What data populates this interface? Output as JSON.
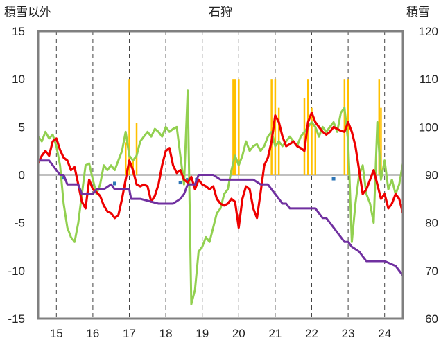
{
  "chart_data": {
    "type": "line",
    "title": "石狩",
    "ylabel_left": "積雪以外",
    "ylabel_right": "積雪",
    "x_range": [
      14.5,
      24.5
    ],
    "x_ticks": [
      "15",
      "16",
      "17",
      "18",
      "19",
      "20",
      "21",
      "22",
      "23",
      "24"
    ],
    "y_left_range": [
      -15,
      15
    ],
    "y_left_ticks": [
      "15",
      "10",
      "5",
      "0",
      "-5",
      "-10",
      "-15"
    ],
    "y_right_range": [
      60,
      120
    ],
    "y_right_ticks": [
      "120",
      "110",
      "100",
      "90",
      "80",
      "70",
      "60"
    ],
    "grid": "dashed vertical at each x tick",
    "colors": {
      "red": "#ee0000",
      "green": "#92d050",
      "purple": "#7030a0",
      "orange": "#ffc000",
      "blue": "#2e75b6"
    },
    "series": [
      {
        "color": "red",
        "axis": "left",
        "x": [
          14.5,
          14.6,
          14.7,
          14.8,
          14.9,
          15.0,
          15.1,
          15.2,
          15.3,
          15.4,
          15.5,
          15.6,
          15.7,
          15.8,
          15.9,
          16.0,
          16.1,
          16.2,
          16.3,
          16.4,
          16.5,
          16.6,
          16.7,
          16.8,
          16.9,
          17.0,
          17.1,
          17.2,
          17.3,
          17.4,
          17.5,
          17.6,
          17.7,
          17.8,
          17.9,
          18.0,
          18.1,
          18.2,
          18.3,
          18.4,
          18.5,
          18.6,
          18.7,
          18.8,
          18.9,
          19.0,
          19.1,
          19.2,
          19.3,
          19.4,
          19.5,
          19.6,
          19.7,
          19.8,
          19.9,
          20.0,
          20.1,
          20.2,
          20.3,
          20.4,
          20.5,
          20.6,
          20.7,
          20.8,
          20.9,
          21.0,
          21.1,
          21.2,
          21.3,
          21.4,
          21.5,
          21.6,
          21.7,
          21.8,
          21.9,
          22.0,
          22.1,
          22.2,
          22.3,
          22.4,
          22.5,
          22.6,
          22.7,
          22.8,
          22.9,
          23.0,
          23.1,
          23.2,
          23.3,
          23.4,
          23.5,
          23.6,
          23.7,
          23.8,
          23.9,
          24.0,
          24.1,
          24.2,
          24.3,
          24.4,
          24.5
        ],
        "y": [
          1.2,
          2.0,
          2.5,
          2.0,
          3.5,
          3.8,
          2.6,
          1.8,
          1.5,
          0.5,
          0.8,
          -1.0,
          -2.8,
          -3.5,
          -0.5,
          -1.5,
          -1.8,
          -2.2,
          -3.2,
          -3.8,
          -4.0,
          -4.5,
          -4.2,
          -2.5,
          -0.5,
          1.5,
          0.5,
          -1.0,
          -1.2,
          -1.0,
          -1.2,
          -2.8,
          -2.2,
          -1.0,
          1.0,
          2.5,
          2.8,
          1.0,
          0.2,
          0.5,
          -0.5,
          -0.8,
          -0.2,
          -1.5,
          -0.5,
          -1.0,
          -1.2,
          -1.5,
          -1.2,
          -2.5,
          -3.0,
          -3.2,
          -3.0,
          -2.5,
          -2.8,
          -5.5,
          -2.5,
          -1.2,
          -1.5,
          -3.5,
          -4.5,
          -1.8,
          1.0,
          1.8,
          3.5,
          6.2,
          5.5,
          4.0,
          3.0,
          3.2,
          3.5,
          3.0,
          2.8,
          2.5,
          5.5,
          6.5,
          5.5,
          5.0,
          4.5,
          4.2,
          4.5,
          5.0,
          4.8,
          4.6,
          4.5,
          5.5,
          4.5,
          3.0,
          0.5,
          -2.0,
          -1.5,
          -0.5,
          0.5,
          -1.0,
          -2.5,
          -2.0,
          -3.5,
          -3.0,
          -2.0,
          -2.5,
          -4.0
        ]
      },
      {
        "color": "green",
        "axis": "left",
        "x": [
          14.5,
          14.6,
          14.7,
          14.8,
          14.9,
          15.0,
          15.1,
          15.2,
          15.3,
          15.4,
          15.5,
          15.6,
          15.7,
          15.8,
          15.9,
          16.0,
          16.1,
          16.2,
          16.3,
          16.4,
          16.5,
          16.6,
          16.7,
          16.8,
          16.9,
          17.0,
          17.1,
          17.2,
          17.3,
          17.4,
          17.5,
          17.6,
          17.7,
          17.8,
          17.9,
          18.0,
          18.1,
          18.2,
          18.3,
          18.4,
          18.5,
          18.6,
          18.7,
          18.8,
          18.9,
          19.0,
          19.1,
          19.2,
          19.3,
          19.4,
          19.5,
          19.6,
          19.7,
          19.8,
          19.9,
          20.0,
          20.1,
          20.2,
          20.3,
          20.4,
          20.5,
          20.6,
          20.7,
          20.8,
          20.9,
          21.0,
          21.1,
          21.2,
          21.3,
          21.4,
          21.5,
          21.6,
          21.7,
          21.8,
          21.9,
          22.0,
          22.1,
          22.2,
          22.3,
          22.4,
          22.5,
          22.6,
          22.7,
          22.8,
          22.9,
          23.0,
          23.1,
          23.2,
          23.3,
          23.4,
          23.5,
          23.6,
          23.7,
          23.8,
          23.9,
          24.0,
          24.1,
          24.2,
          24.3,
          24.4,
          24.5
        ],
        "y": [
          4.0,
          3.5,
          4.5,
          3.8,
          4.2,
          3.0,
          1.0,
          -3.0,
          -5.5,
          -6.5,
          -7.0,
          -5.0,
          -2.0,
          1.0,
          1.2,
          -0.5,
          -2.0,
          -1.0,
          1.0,
          0.5,
          1.0,
          0.5,
          1.5,
          2.5,
          4.5,
          2.0,
          1.5,
          2.0,
          3.5,
          4.0,
          4.5,
          4.0,
          4.8,
          4.5,
          4.0,
          5.0,
          4.5,
          4.8,
          5.0,
          2.0,
          -1.0,
          8.8,
          -13.5,
          -12.0,
          -8.0,
          -7.5,
          -6.5,
          -7.0,
          -5.5,
          -4.0,
          -3.5,
          -2.0,
          -1.5,
          0.5,
          2.0,
          1.0,
          2.0,
          3.5,
          2.5,
          3.0,
          3.2,
          2.5,
          3.0,
          4.0,
          4.5,
          3.0,
          3.5,
          3.0,
          3.5,
          4.0,
          3.5,
          3.0,
          4.0,
          4.5,
          5.0,
          5.5,
          5.0,
          4.0,
          5.0,
          4.5,
          5.0,
          5.5,
          4.5,
          6.5,
          7.0,
          3.5,
          -7.0,
          -3.0,
          0.0,
          1.0,
          -2.0,
          -3.0,
          -5.0,
          5.5,
          -0.5,
          1.5,
          -1.5,
          -0.5,
          -2.0,
          -1.0,
          1.2
        ]
      },
      {
        "color": "purple",
        "axis": "right",
        "x": [
          14.5,
          14.8,
          15.0,
          15.1,
          15.2,
          15.3,
          15.6,
          15.7,
          16.0,
          16.1,
          16.3,
          16.5,
          16.6,
          16.9,
          17.0,
          17.05,
          17.1,
          17.3,
          17.8,
          18.0,
          18.2,
          18.4,
          18.5,
          18.6,
          18.8,
          18.9,
          19.0,
          19.3,
          19.5,
          20.0,
          20.2,
          20.4,
          20.6,
          20.8,
          20.9,
          21.0,
          21.1,
          21.2,
          21.3,
          21.4,
          21.6,
          22.0,
          22.1,
          22.2,
          22.3,
          22.4,
          22.5,
          22.6,
          22.7,
          22.8,
          22.9,
          23.0,
          23.1,
          23.3,
          23.4,
          23.5,
          23.6,
          23.8,
          24.0,
          24.3,
          24.4,
          24.5
        ],
        "y": [
          93,
          93,
          91,
          90,
          90,
          88,
          88,
          86,
          86,
          87,
          87,
          88,
          87,
          87,
          87,
          85,
          85,
          85,
          84,
          84,
          84,
          85,
          86,
          88,
          88,
          90,
          90,
          90,
          89,
          89,
          89,
          89,
          88,
          88,
          87,
          86,
          85,
          84,
          84,
          83,
          83,
          83,
          83,
          82,
          81,
          81,
          80,
          79,
          78,
          77,
          76,
          76,
          75,
          74,
          73,
          72,
          72,
          72,
          72,
          71,
          70,
          69
        ]
      }
    ],
    "orange_bars": [
      {
        "x": 16.9,
        "y": 3.4
      },
      {
        "x": 17.0,
        "y": 10.0
      },
      {
        "x": 17.1,
        "y": 1.5
      },
      {
        "x": 17.2,
        "y": 5.4
      },
      {
        "x": 19.85,
        "y": 10.0
      },
      {
        "x": 19.9,
        "y": 10.0
      },
      {
        "x": 20.0,
        "y": 10.0
      },
      {
        "x": 20.9,
        "y": 10.0
      },
      {
        "x": 21.0,
        "y": 10.0
      },
      {
        "x": 21.1,
        "y": 7.0
      },
      {
        "x": 21.8,
        "y": 8.0
      },
      {
        "x": 21.9,
        "y": 10.0
      },
      {
        "x": 22.0,
        "y": 7.0
      },
      {
        "x": 22.1,
        "y": 5.0
      },
      {
        "x": 22.9,
        "y": 10.0
      },
      {
        "x": 23.0,
        "y": 10.0
      },
      {
        "x": 23.85,
        "y": 10.0
      },
      {
        "x": 23.9,
        "y": 7.0
      }
    ],
    "blue_marks": [
      {
        "x": 15.2,
        "y": -0.3
      },
      {
        "x": 16.6,
        "y": -0.9
      },
      {
        "x": 18.4,
        "y": -0.8
      },
      {
        "x": 18.6,
        "y": -0.5
      },
      {
        "x": 18.85,
        "y": -0.5
      },
      {
        "x": 22.6,
        "y": -0.4
      }
    ]
  }
}
